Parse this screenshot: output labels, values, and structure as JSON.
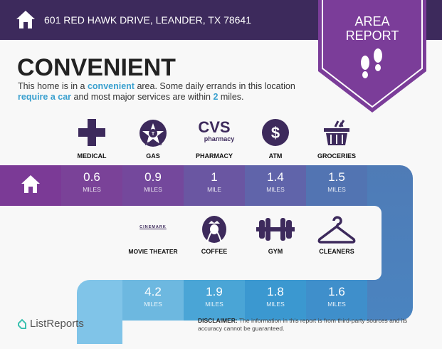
{
  "header": {
    "address": "601 RED HAWK DRIVE, LEANDER, TX 78641",
    "badge_line1": "AREA",
    "badge_line2": "REPORT"
  },
  "title": "CONVENIENT",
  "description": {
    "p1": "This home is in a ",
    "h1": "convenient",
    "p2": " area. Some daily errands in this location ",
    "h2": "require a car",
    "p3": " and most major services are within ",
    "h3": "2",
    "p4": " miles."
  },
  "row1": [
    {
      "label": "MEDICAL",
      "value": "0.6",
      "unit": "MILES",
      "icon": "medical-cross-icon"
    },
    {
      "label": "GAS",
      "value": "0.9",
      "unit": "MILES",
      "icon": "texaco-icon",
      "brand": "TEXACO"
    },
    {
      "label": "PHARMACY",
      "value": "1",
      "unit": "MILE",
      "icon": "cvs-icon",
      "brand": "CVS",
      "brand_sub": "pharmacy"
    },
    {
      "label": "ATM",
      "value": "1.4",
      "unit": "MILES",
      "icon": "dollar-icon"
    },
    {
      "label": "GROCERIES",
      "value": "1.5",
      "unit": "MILES",
      "icon": "grocery-basket-icon"
    }
  ],
  "row2": [
    {
      "label": "MOVIE THEATER",
      "value": "4.2",
      "unit": "MILES",
      "icon": "cinemark-icon",
      "brand": "CINEMARK"
    },
    {
      "label": "COFFEE",
      "value": "1.9",
      "unit": "MILES",
      "icon": "starbucks-icon"
    },
    {
      "label": "GYM",
      "value": "1.8",
      "unit": "MILES",
      "icon": "dumbbell-icon"
    },
    {
      "label": "CLEANERS",
      "value": "1.6",
      "unit": "MILES",
      "icon": "hanger-icon"
    }
  ],
  "footer": {
    "logo": "ListReports",
    "disclaimer_label": "DISCLAIMER:",
    "disclaimer": " The information in this report is from third-party sources and its accuracy cannot be guaranteed."
  },
  "colors": {
    "header": "#3d2a5c",
    "badge": "#7b3d99",
    "accent": "#3aa0cf"
  }
}
